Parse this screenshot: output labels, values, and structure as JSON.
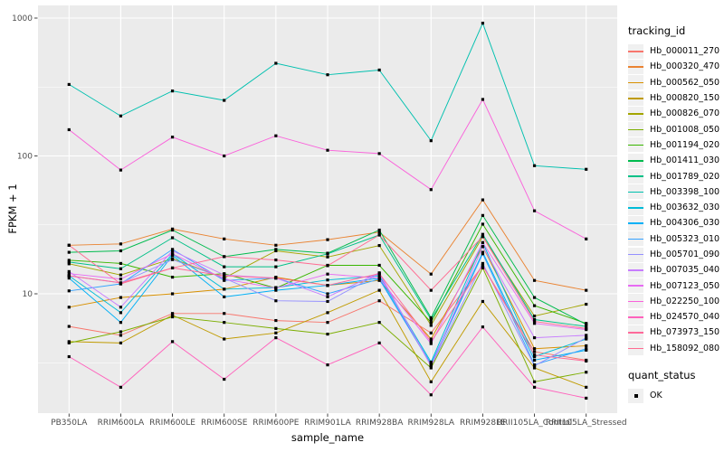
{
  "chart_data": {
    "type": "line",
    "title": "",
    "xlabel": "sample_name",
    "ylabel": "FPKM + 1",
    "y_scale": "log10",
    "y_ticks": [
      1000,
      100,
      10
    ],
    "ylim": [
      1.4,
      1200
    ],
    "grid": "on",
    "legend_position": "right",
    "legend_title": "tracking_id",
    "point_legend": {
      "title": "quant_status",
      "label": "OK",
      "color": "#000000"
    },
    "panel_bg": "#EBEBEB",
    "grid_color": "#FFFFFF",
    "axis_text_color": "#4D4D4D",
    "point_color": "#000000",
    "categories": [
      "PB350LA",
      "RRIM600LA",
      "RRIM600LE",
      "RRIM600SE",
      "RRIM600PE",
      "RRIM901LA",
      "RRIM928BA",
      "RRIM928LA",
      "RRIM928LE",
      "RRII105LA_Control",
      "RRII105LA_Stressed"
    ],
    "series": [
      {
        "name": "Hb_000011_270",
        "color": "#F8766D",
        "values": [
          5.8,
          5.0,
          7.2,
          7.2,
          6.4,
          6.2,
          8.9,
          5.2,
          16.0,
          3.8,
          3.3
        ]
      },
      {
        "name": "Hb_000320_470",
        "color": "#EA8331",
        "values": [
          22.5,
          23.0,
          29.5,
          25.0,
          22.5,
          24.7,
          28.0,
          13.9,
          48.0,
          12.5,
          10.6
        ]
      },
      {
        "name": "Hb_000562_050",
        "color": "#D89000",
        "values": [
          8.0,
          9.4,
          10.0,
          10.8,
          13.2,
          11.5,
          12.5,
          4.7,
          22.0,
          4.0,
          4.2
        ]
      },
      {
        "name": "Hb_000820_150",
        "color": "#C09B00",
        "values": [
          4.5,
          4.4,
          7.0,
          4.7,
          5.2,
          7.3,
          10.6,
          2.3,
          8.8,
          2.9,
          2.1
        ]
      },
      {
        "name": "Hb_000826_070",
        "color": "#A3A500",
        "values": [
          16.5,
          13.7,
          18.0,
          13.0,
          20.5,
          18.5,
          22.4,
          5.9,
          26.0,
          6.9,
          8.4
        ]
      },
      {
        "name": "Hb_001008_050",
        "color": "#7CAE00",
        "values": [
          4.4,
          5.3,
          6.8,
          6.2,
          5.6,
          5.1,
          6.2,
          2.9,
          15.4,
          2.3,
          2.7
        ]
      },
      {
        "name": "Hb_001194_020",
        "color": "#39B600",
        "values": [
          17.5,
          16.6,
          13.2,
          14.0,
          11.0,
          16.1,
          16.1,
          6.2,
          32.0,
          8.2,
          6.1
        ]
      },
      {
        "name": "Hb_001411_030",
        "color": "#00BB4E",
        "values": [
          20.0,
          20.5,
          29.0,
          18.6,
          21.0,
          19.7,
          29.0,
          6.7,
          37.0,
          9.4,
          6.0
        ]
      },
      {
        "name": "Hb_001789_020",
        "color": "#00C087",
        "values": [
          17.0,
          15.2,
          25.5,
          15.7,
          15.7,
          19.5,
          26.7,
          6.5,
          27.0,
          6.5,
          5.8
        ]
      },
      {
        "name": "Hb_003398_100",
        "color": "#00C0AF",
        "values": [
          330,
          195,
          296,
          253,
          470,
          388,
          420,
          129,
          918,
          85,
          80
        ]
      },
      {
        "name": "Hb_003632_030",
        "color": "#00BCD8",
        "values": [
          13.5,
          7.3,
          19.5,
          10.8,
          11.1,
          12.6,
          13.5,
          3.2,
          23.5,
          3.5,
          4.7
        ]
      },
      {
        "name": "Hb_004306_030",
        "color": "#00B0F6",
        "values": [
          13.0,
          6.2,
          19.0,
          9.5,
          10.6,
          11.5,
          13.0,
          3.1,
          20.0,
          3.3,
          3.9
        ]
      },
      {
        "name": "Hb_005323_010",
        "color": "#35A2FF",
        "values": [
          10.5,
          11.8,
          21.0,
          12.5,
          13.0,
          10.0,
          12.8,
          3.05,
          19.5,
          3.05,
          4.0
        ]
      },
      {
        "name": "Hb_005701_090",
        "color": "#9590FF",
        "values": [
          13.5,
          12.0,
          17.7,
          13.0,
          8.9,
          8.8,
          14.0,
          3.0,
          16.6,
          3.0,
          4.8
        ]
      },
      {
        "name": "Hb_007035_040",
        "color": "#C77CFF",
        "values": [
          14.5,
          8.0,
          20.5,
          13.7,
          13.0,
          9.5,
          14.2,
          3.0,
          22.0,
          4.8,
          5.0
        ]
      },
      {
        "name": "Hb_007123_050",
        "color": "#E76BF3",
        "values": [
          14.0,
          12.8,
          19.5,
          12.8,
          11.0,
          13.9,
          13.0,
          4.35,
          23.5,
          6.1,
          5.5
        ]
      },
      {
        "name": "Hb_022250_100",
        "color": "#FA62DB",
        "values": [
          155,
          79,
          137,
          100,
          140,
          110,
          104,
          57,
          257,
          40,
          25
        ]
      },
      {
        "name": "Hb_024570_040",
        "color": "#FF62BC",
        "values": [
          3.5,
          2.1,
          4.5,
          2.4,
          4.8,
          3.05,
          4.4,
          1.85,
          5.75,
          2.1,
          1.75
        ]
      },
      {
        "name": "Hb_073973_150",
        "color": "#FF6A9A",
        "values": [
          13.5,
          12.0,
          15.4,
          13.5,
          13.0,
          11.5,
          14.0,
          4.5,
          16.0,
          3.6,
          3.25
        ]
      },
      {
        "name": "Hb_158092_080",
        "color": "#FF6B91",
        "values": [
          22.5,
          11.8,
          15.4,
          18.6,
          17.6,
          16.0,
          26.7,
          10.6,
          26.0,
          6.3,
          5.6
        ]
      }
    ]
  }
}
